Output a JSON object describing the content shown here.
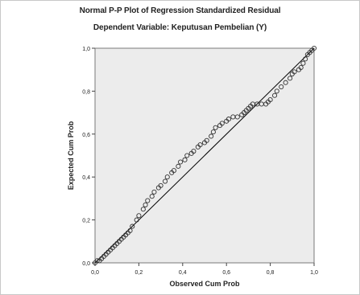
{
  "chart_data": {
    "type": "scatter",
    "title": "Normal P-P Plot of Regression Standardized Residual",
    "subtitle": "Dependent Variable: Keputusan Pembelian (Y)",
    "xlabel": "Observed Cum Prob",
    "ylabel": "Expected Cum Prob",
    "xlim": [
      0.0,
      1.0
    ],
    "ylim": [
      0.0,
      1.0
    ],
    "x_ticks": [
      "0,0",
      "0,2",
      "0,4",
      "0,6",
      "0,8",
      "1,0"
    ],
    "y_ticks": [
      "0,0",
      "0,2",
      "0,4",
      "0,6",
      "0,8",
      "1,0"
    ],
    "reference_line": [
      [
        0.0,
        0.0
      ],
      [
        1.0,
        1.0
      ]
    ],
    "colors": {
      "plot_background": "#ececec",
      "points": "#333333",
      "line": "#000000"
    },
    "points": [
      [
        0.0,
        0.0
      ],
      [
        0.01,
        0.01
      ],
      [
        0.02,
        0.01
      ],
      [
        0.03,
        0.02
      ],
      [
        0.04,
        0.03
      ],
      [
        0.05,
        0.04
      ],
      [
        0.06,
        0.05
      ],
      [
        0.07,
        0.06
      ],
      [
        0.08,
        0.07
      ],
      [
        0.09,
        0.08
      ],
      [
        0.1,
        0.09
      ],
      [
        0.11,
        0.1
      ],
      [
        0.12,
        0.11
      ],
      [
        0.13,
        0.12
      ],
      [
        0.14,
        0.13
      ],
      [
        0.15,
        0.14
      ],
      [
        0.16,
        0.15
      ],
      [
        0.17,
        0.17
      ],
      [
        0.19,
        0.2
      ],
      [
        0.2,
        0.22
      ],
      [
        0.22,
        0.25
      ],
      [
        0.23,
        0.27
      ],
      [
        0.24,
        0.29
      ],
      [
        0.26,
        0.31
      ],
      [
        0.27,
        0.33
      ],
      [
        0.29,
        0.35
      ],
      [
        0.3,
        0.36
      ],
      [
        0.32,
        0.38
      ],
      [
        0.33,
        0.4
      ],
      [
        0.35,
        0.42
      ],
      [
        0.36,
        0.43
      ],
      [
        0.38,
        0.45
      ],
      [
        0.39,
        0.47
      ],
      [
        0.41,
        0.48
      ],
      [
        0.42,
        0.5
      ],
      [
        0.44,
        0.51
      ],
      [
        0.45,
        0.52
      ],
      [
        0.47,
        0.54
      ],
      [
        0.48,
        0.55
      ],
      [
        0.5,
        0.56
      ],
      [
        0.51,
        0.57
      ],
      [
        0.53,
        0.59
      ],
      [
        0.54,
        0.61
      ],
      [
        0.55,
        0.63
      ],
      [
        0.57,
        0.64
      ],
      [
        0.58,
        0.65
      ],
      [
        0.6,
        0.66
      ],
      [
        0.61,
        0.67
      ],
      [
        0.63,
        0.68
      ],
      [
        0.65,
        0.68
      ],
      [
        0.67,
        0.69
      ],
      [
        0.68,
        0.7
      ],
      [
        0.69,
        0.71
      ],
      [
        0.7,
        0.72
      ],
      [
        0.71,
        0.73
      ],
      [
        0.72,
        0.74
      ],
      [
        0.74,
        0.74
      ],
      [
        0.76,
        0.74
      ],
      [
        0.78,
        0.74
      ],
      [
        0.79,
        0.75
      ],
      [
        0.8,
        0.76
      ],
      [
        0.82,
        0.78
      ],
      [
        0.83,
        0.8
      ],
      [
        0.85,
        0.82
      ],
      [
        0.87,
        0.84
      ],
      [
        0.89,
        0.86
      ],
      [
        0.9,
        0.88
      ],
      [
        0.91,
        0.89
      ],
      [
        0.93,
        0.9
      ],
      [
        0.94,
        0.91
      ],
      [
        0.95,
        0.93
      ],
      [
        0.96,
        0.95
      ],
      [
        0.97,
        0.97
      ],
      [
        0.98,
        0.98
      ],
      [
        0.99,
        0.99
      ],
      [
        1.0,
        1.0
      ]
    ]
  }
}
